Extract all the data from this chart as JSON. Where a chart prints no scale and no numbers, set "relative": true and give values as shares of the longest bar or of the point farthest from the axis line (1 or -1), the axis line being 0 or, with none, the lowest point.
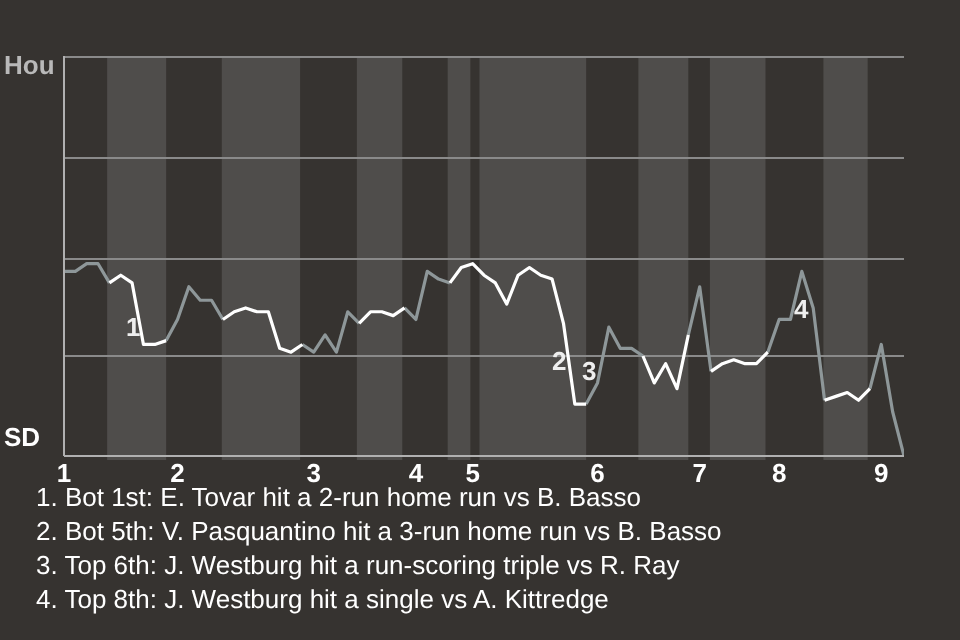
{
  "chart_data": {
    "type": "line",
    "relative": true,
    "categories": [
      "1",
      null,
      null,
      null,
      null,
      null,
      null,
      null,
      null,
      null,
      "2",
      null,
      null,
      null,
      null,
      null,
      null,
      null,
      null,
      null,
      null,
      null,
      "3",
      null,
      null,
      null,
      null,
      null,
      null,
      null,
      null,
      "4",
      null,
      null,
      null,
      null,
      "5",
      null,
      null,
      null,
      null,
      null,
      null,
      null,
      null,
      null,
      null,
      "6",
      null,
      null,
      null,
      null,
      null,
      null,
      null,
      null,
      "7",
      null,
      null,
      null,
      null,
      null,
      null,
      "8",
      null,
      null,
      null,
      null,
      null,
      null,
      null,
      null,
      "9",
      null,
      null
    ],
    "series": [
      {
        "color": "#8e9799",
        "values": [
          0.96,
          0.96,
          1,
          1,
          0.9,
          null,
          null,
          null,
          null,
          0.6,
          0.71,
          0.88,
          0.81,
          0.81,
          0.71,
          null,
          null,
          null,
          null,
          null,
          null,
          0.58,
          0.54,
          0.63,
          0.54,
          0.75,
          0.69,
          null,
          null,
          null,
          0.77,
          0.71,
          0.96,
          0.92,
          0.9,
          null,
          null,
          null,
          null,
          null,
          null,
          null,
          null,
          null,
          null,
          null,
          0.27,
          0.38,
          0.67,
          0.56,
          0.56,
          0.52,
          null,
          null,
          null,
          0.63,
          0.88,
          0.44,
          null,
          null,
          null,
          null,
          0.54,
          0.71,
          0.71,
          0.96,
          0.77,
          0.29,
          null,
          null,
          null,
          0.35,
          0.58,
          0.23,
          0
        ]
      },
      {
        "color": "#ffffff",
        "values": [
          null,
          null,
          null,
          null,
          0.9,
          0.94,
          0.9,
          0.58,
          0.58,
          0.6,
          null,
          null,
          null,
          null,
          0.71,
          0.75,
          0.77,
          0.75,
          0.75,
          0.56,
          0.54,
          0.58,
          null,
          null,
          null,
          null,
          0.69,
          0.75,
          0.75,
          0.73,
          0.77,
          null,
          null,
          null,
          0.9,
          0.98,
          1,
          0.94,
          0.9,
          0.79,
          0.94,
          0.98,
          0.94,
          0.92,
          0.69,
          0.27,
          0.27,
          null,
          null,
          null,
          null,
          0.52,
          0.38,
          0.48,
          0.35,
          0.63,
          null,
          0.44,
          0.48,
          0.5,
          0.48,
          0.48,
          0.54,
          null,
          null,
          null,
          null,
          0.29,
          0.31,
          0.33,
          0.29,
          0.35,
          null,
          null,
          null
        ]
      }
    ],
    "ref_lines": [
      {
        "axis": "y",
        "value": 0.52,
        "color": "#8a8a8a"
      }
    ],
    "annotations": [
      "Hou",
      "SD",
      "1",
      "2",
      "3",
      "4",
      "1. Bot 1st: E. Tovar hit a 2-run home run vs B. Basso",
      "2. Bot 5th: V. Pasquantino hit a 3-run home run vs B. Basso",
      "3. Top 6th: J. Westburg hit a run-scoring triple vs R. Ray",
      "4. Top 8th: J. Westburg hit a single vs A. Kittredge"
    ]
  }
}
